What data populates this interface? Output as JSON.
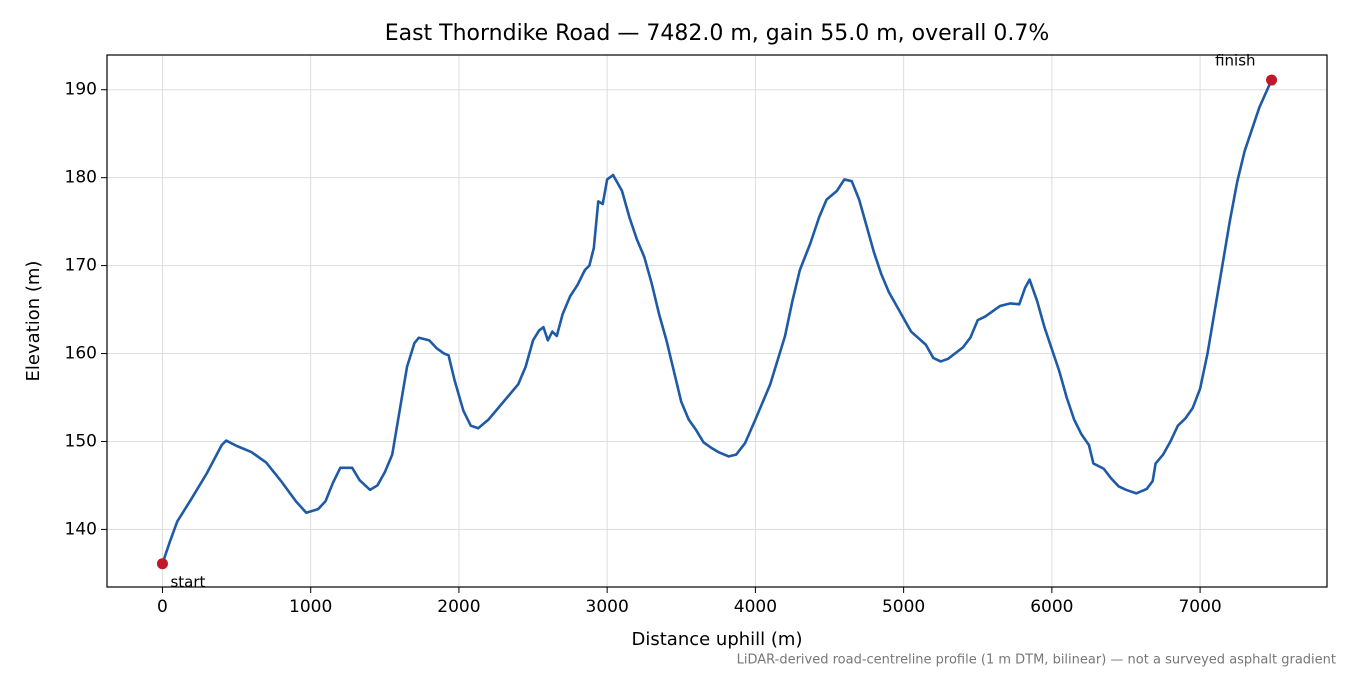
{
  "chart_data": {
    "type": "line",
    "title": "East Thorndike Road — 7482.0 m, gain 55.0 m, overall 0.7%",
    "xlabel": "Distance uphill (m)",
    "ylabel": "Elevation (m)",
    "footnote": "LiDAR-derived road-centreline profile (1 m DTM, bilinear) — not a surveyed asphalt gradient",
    "annotations": [
      "start",
      "finish"
    ],
    "marker_color": "#c0182a",
    "grid": true,
    "xlim": [
      -374.1,
      7856.1
    ],
    "ylim": [
      133.45,
      193.95
    ],
    "xticks": [
      0,
      1000,
      2000,
      3000,
      4000,
      5000,
      6000,
      7000
    ],
    "yticks": [
      140,
      150,
      160,
      170,
      180,
      190
    ],
    "x": [
      0,
      50,
      100,
      200,
      300,
      400,
      430,
      500,
      600,
      700,
      800,
      900,
      970,
      1050,
      1100,
      1150,
      1200,
      1280,
      1330,
      1400,
      1450,
      1500,
      1550,
      1600,
      1650,
      1700,
      1730,
      1800,
      1850,
      1900,
      1930,
      1970,
      2030,
      2080,
      2130,
      2200,
      2300,
      2400,
      2450,
      2500,
      2540,
      2570,
      2600,
      2630,
      2660,
      2700,
      2750,
      2800,
      2850,
      2880,
      2910,
      2940,
      2970,
      3000,
      3040,
      3100,
      3150,
      3200,
      3250,
      3300,
      3350,
      3400,
      3450,
      3500,
      3550,
      3600,
      3650,
      3700,
      3750,
      3820,
      3870,
      3930,
      4000,
      4100,
      4200,
      4250,
      4300,
      4370,
      4430,
      4480,
      4550,
      4600,
      4650,
      4700,
      4750,
      4800,
      4850,
      4900,
      4950,
      5000,
      5050,
      5150,
      5200,
      5250,
      5300,
      5400,
      5450,
      5500,
      5550,
      5650,
      5720,
      5780,
      5820,
      5850,
      5900,
      5950,
      6000,
      6050,
      6100,
      6150,
      6200,
      6250,
      6280,
      6350,
      6400,
      6450,
      6500,
      6570,
      6640,
      6680,
      6700,
      6750,
      6800,
      6850,
      6900,
      6950,
      7000,
      7050,
      7100,
      7150,
      7200,
      7250,
      7300,
      7350,
      7400,
      7482
    ],
    "series": [
      {
        "name": "Elevation",
        "color": "#1f5aa6",
        "values": [
          136.1,
          138.6,
          140.9,
          143.6,
          146.4,
          149.6,
          150.1,
          149.5,
          148.8,
          147.6,
          145.5,
          143.2,
          141.9,
          142.3,
          143.2,
          145.3,
          147.0,
          147.0,
          145.6,
          144.5,
          145.0,
          146.5,
          148.5,
          153.5,
          158.5,
          161.2,
          161.8,
          161.5,
          160.6,
          160.0,
          159.8,
          157.0,
          153.5,
          151.8,
          151.5,
          152.5,
          154.5,
          156.5,
          158.5,
          161.5,
          162.6,
          163.0,
          161.5,
          162.5,
          162.0,
          164.5,
          166.5,
          167.8,
          169.5,
          170.0,
          172.0,
          177.3,
          177.0,
          179.8,
          180.3,
          178.5,
          175.5,
          173.0,
          171.0,
          168.0,
          164.5,
          161.5,
          158.0,
          154.5,
          152.5,
          151.3,
          149.9,
          149.3,
          148.8,
          148.3,
          148.5,
          149.8,
          152.5,
          156.5,
          162.0,
          166.0,
          169.5,
          172.5,
          175.5,
          177.5,
          178.5,
          179.8,
          179.6,
          177.5,
          174.5,
          171.5,
          169.0,
          167.0,
          165.5,
          164.0,
          162.5,
          161.0,
          159.5,
          159.1,
          159.4,
          160.7,
          161.8,
          163.8,
          164.2,
          165.4,
          165.7,
          165.6,
          167.5,
          168.4,
          166.0,
          163.0,
          160.5,
          158.0,
          155.0,
          152.5,
          150.8,
          149.6,
          147.5,
          146.9,
          145.8,
          144.9,
          144.5,
          144.1,
          144.6,
          145.5,
          147.5,
          148.5,
          150.0,
          151.8,
          152.6,
          153.8,
          156.0,
          160.0,
          165.0,
          170.0,
          175.0,
          179.5,
          183.0,
          185.5,
          188.0,
          191.1
        ]
      }
    ]
  }
}
